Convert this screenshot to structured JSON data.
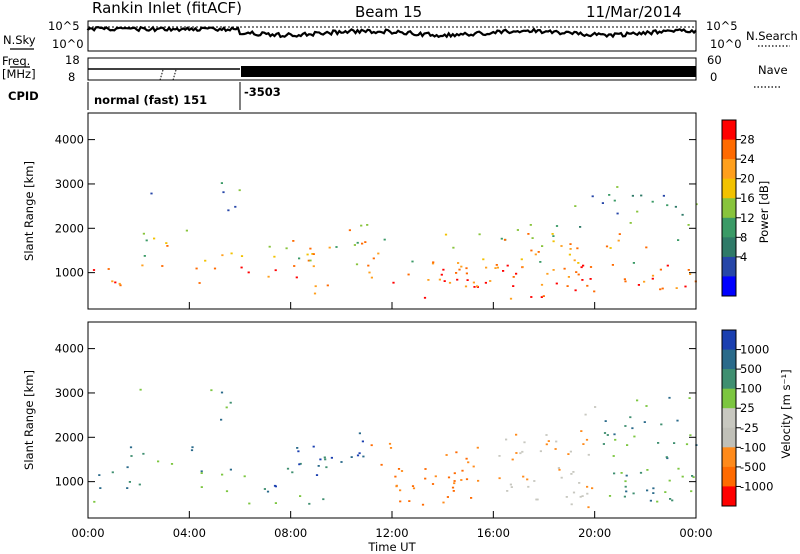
{
  "header": {
    "site": "Rankin Inlet (fitACF)",
    "beam": "Beam 15",
    "date": "11/Mar/2014"
  },
  "top_panels": {
    "nsky_label": "N.Sky",
    "nsearch_label": "N.Search",
    "nsky_ticks": [
      "10^5",
      "10^0"
    ],
    "nsearch_ticks": [
      "10^5",
      "10^0"
    ],
    "freq_label_line1": "Freq.",
    "freq_label_line2": "[MHz]",
    "freq_ticks": [
      "18",
      "8"
    ],
    "nave_label": "Nave",
    "nave_ticks": [
      "60",
      "0"
    ],
    "cpid_label": "CPID",
    "cpid_segments": [
      {
        "text": "normal (fast) 151",
        "from_hour": 0,
        "to_hour": 6
      },
      {
        "text": "-3503",
        "from_hour": 6,
        "to_hour": 24
      }
    ]
  },
  "chart_data": [
    {
      "type": "heatmap",
      "name": "power",
      "ylabel": "Slant Range [km]",
      "xlabel": "Time UT",
      "x_ticks": [
        "00:00",
        "04:00",
        "08:00",
        "12:00",
        "16:00",
        "20:00",
        "00:00"
      ],
      "xlim_hours": [
        0,
        24
      ],
      "ylim_km": [
        180,
        4600
      ],
      "y_ticks": [
        "4000",
        "3000",
        "2000",
        "1000"
      ],
      "colorbar": {
        "label": "Power [dB]",
        "ticks": [
          "28",
          "24",
          "20",
          "16",
          "12",
          "8",
          "4"
        ],
        "colors": [
          "#ff0000",
          "#ff6a00",
          "#ff9f1c",
          "#f2c200",
          "#88c43c",
          "#3a9a66",
          "#2f7a68",
          "#2646a8",
          "#0000ff"
        ]
      }
    },
    {
      "type": "heatmap",
      "name": "velocity",
      "ylabel": "Slant Range [km]",
      "xlabel": "Time UT",
      "x_ticks": [
        "00:00",
        "04:00",
        "08:00",
        "12:00",
        "16:00",
        "20:00",
        "00:00"
      ],
      "xlim_hours": [
        0,
        24
      ],
      "ylim_km": [
        180,
        4600
      ],
      "y_ticks": [
        "4000",
        "3000",
        "2000",
        "1000"
      ],
      "colorbar": {
        "label": "Velocity [m s⁻¹]",
        "ticks": [
          "1000",
          "500",
          "100",
          "25",
          "-25",
          "-100",
          "-500",
          "-1000"
        ],
        "colors": [
          "#1a3fb0",
          "#2a6a8a",
          "#3f8f70",
          "#7cc640",
          "#c8c8c0",
          "#c0c0b8",
          "#ff8a1a",
          "#ff6a00",
          "#ff0000"
        ]
      }
    }
  ]
}
